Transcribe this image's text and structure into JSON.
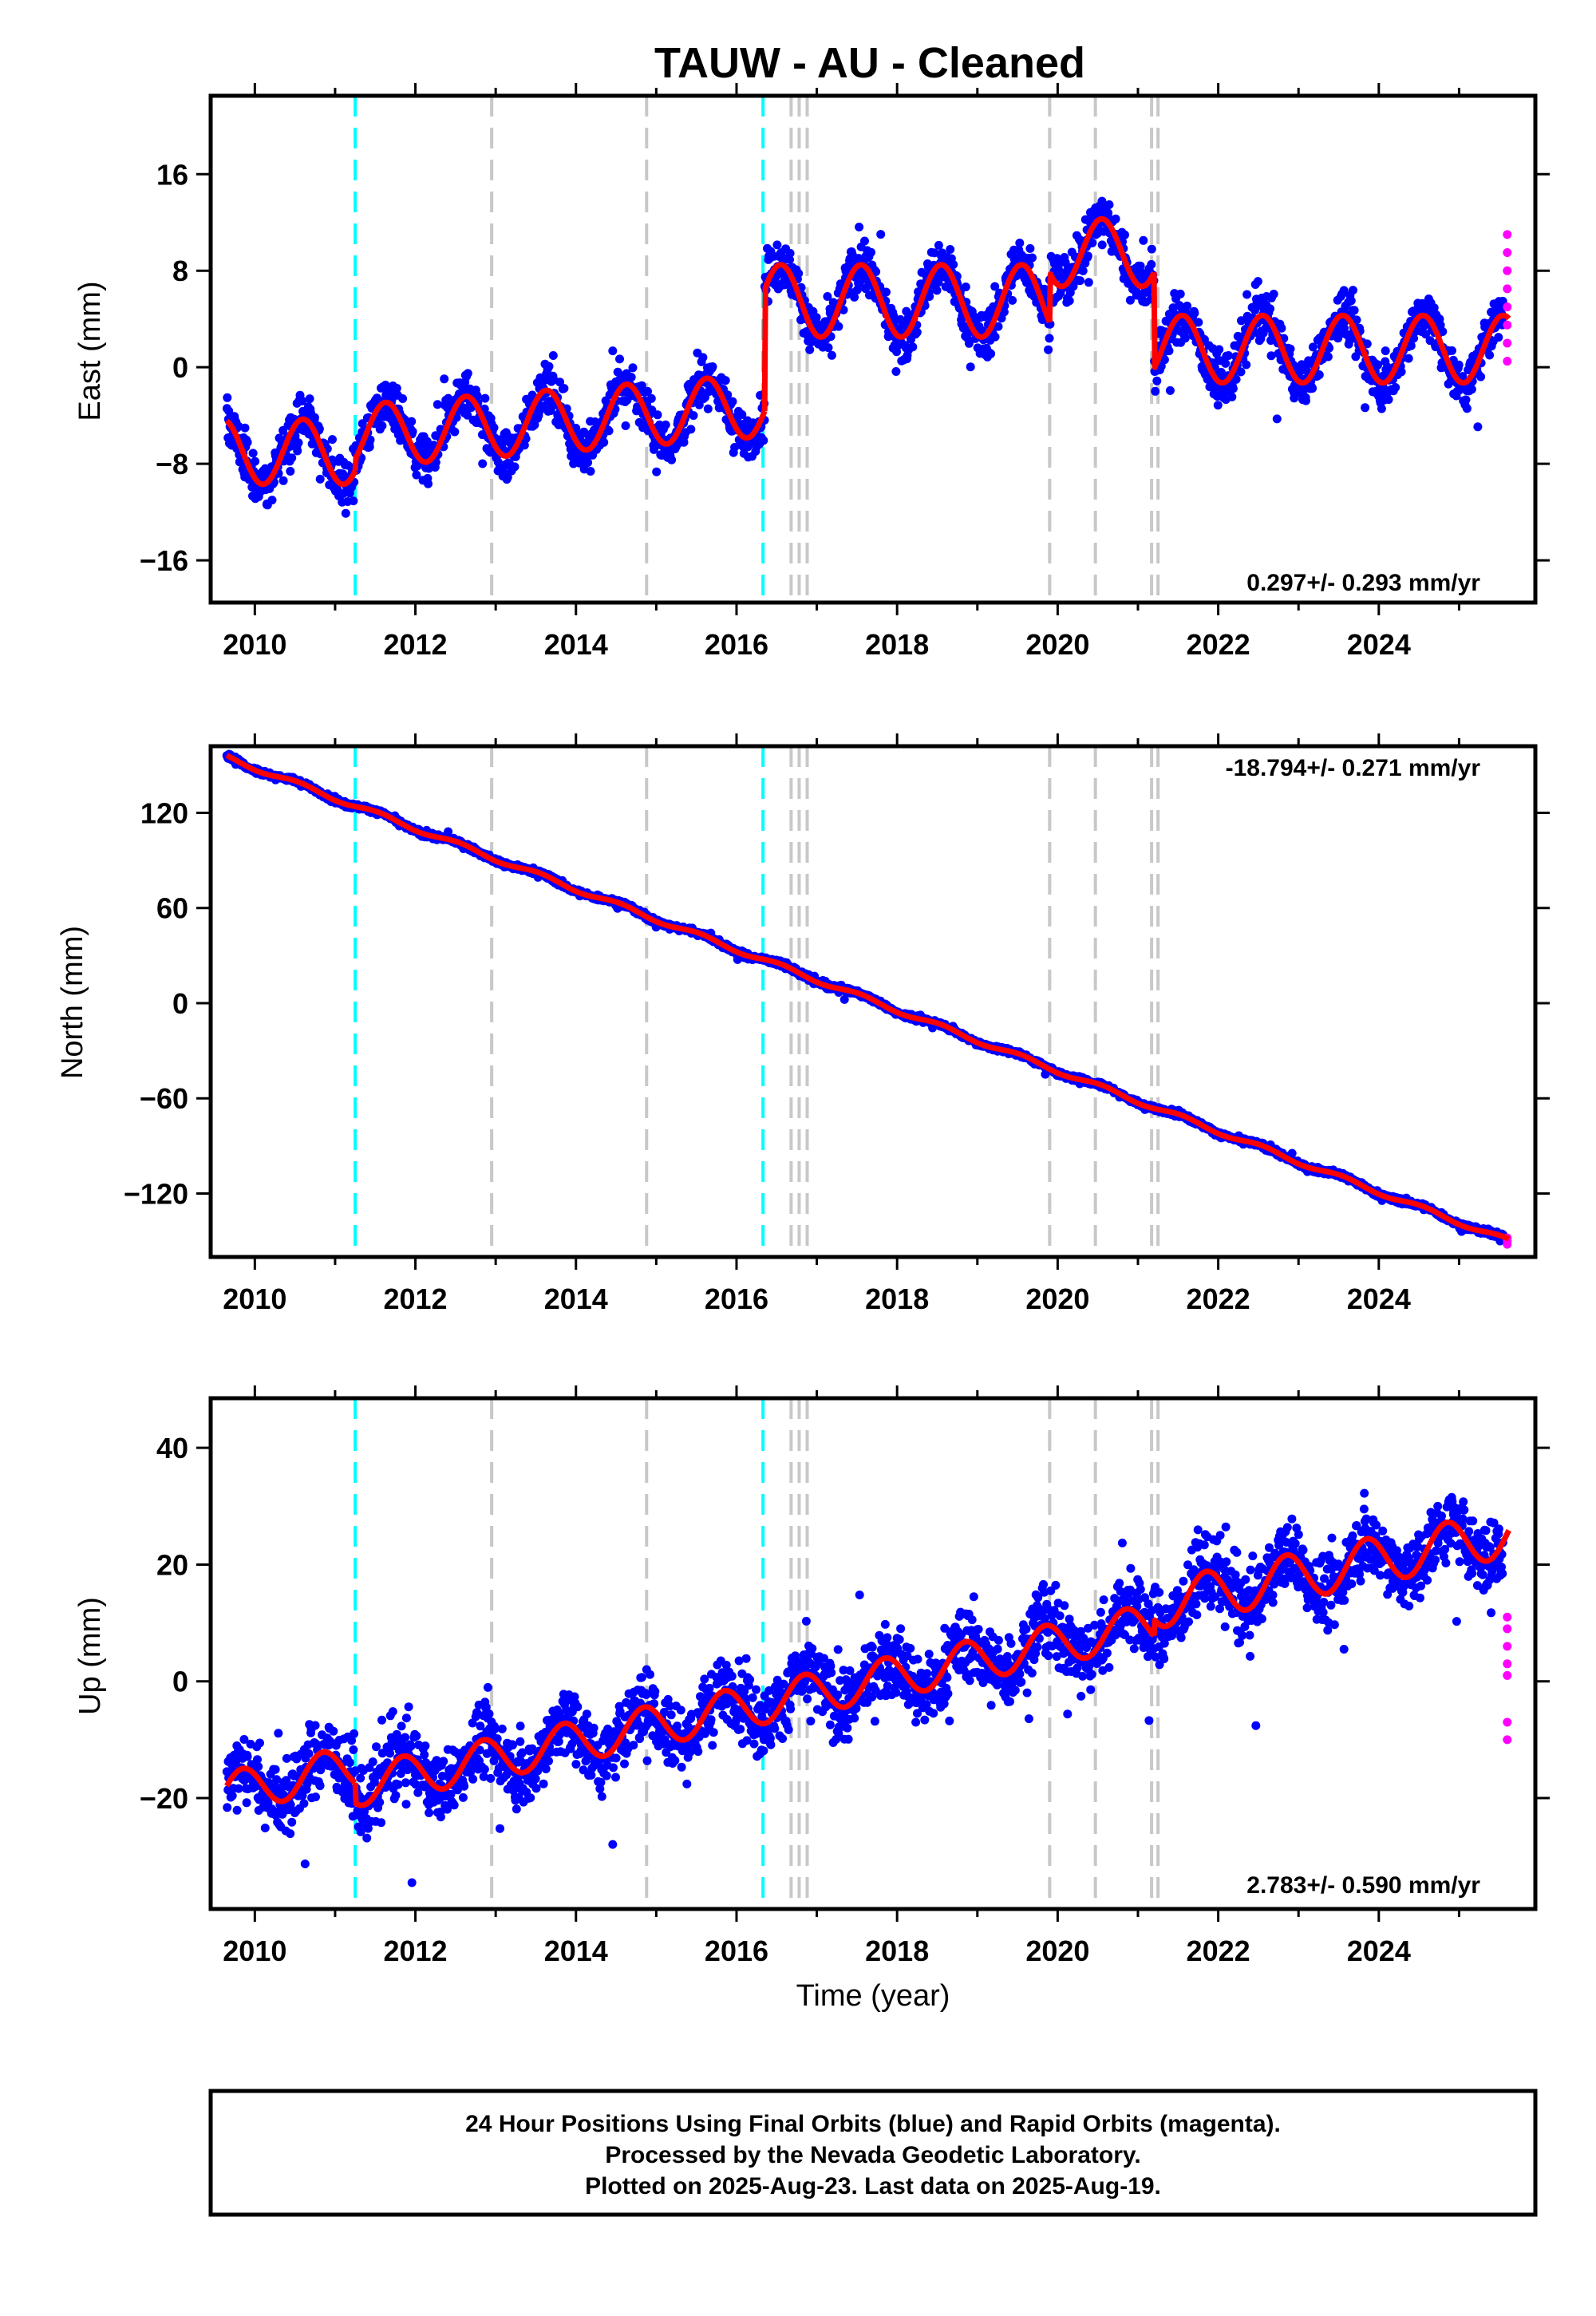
{
  "title": "TAUW  - AU - Cleaned",
  "xlabel": "Time (year)",
  "footer": {
    "lines": [
      "24 Hour Positions Using Final Orbits (blue) and Rapid Orbits (magenta).",
      "Processed by the Nevada Geodetic Laboratory.",
      "Plotted on 2025-Aug-23. Last data on 2025-Aug-19."
    ]
  },
  "colors": {
    "final_orbits": "#0000ff",
    "rapid_orbits": "#ff00ff",
    "model_fit": "#ff0000",
    "antenna_change": "#00ffff",
    "equipment_change": "#c8c8c8"
  },
  "chart_data": [
    {
      "type": "scatter",
      "panel": "east",
      "ylabel": "East (mm)",
      "rate_label": "0.297+/- 0.293 mm/yr",
      "rate_position": "bottom-right",
      "xlim": [
        2009.45,
        2025.95
      ],
      "ylim": [
        -19.5,
        22.5
      ],
      "xticks": [
        2010,
        2012,
        2014,
        2016,
        2018,
        2020,
        2022,
        2024
      ],
      "yticks": [
        -16,
        -8,
        0,
        8,
        16
      ],
      "ytick_labels": [
        "−16",
        "−8",
        "0",
        "8",
        "16"
      ],
      "fit_segments": [
        {
          "start": 2009.65,
          "end": 2011.25,
          "offset": -7.0,
          "amp": 2.7,
          "phase": 0.35
        },
        {
          "start": 2011.25,
          "end": 2016.35,
          "offset": -5.7,
          "amp": 2.6,
          "phase": 0.38,
          "slope": 0.5
        },
        {
          "start": 2016.35,
          "end": 2019.9,
          "offset": 5.5,
          "amp": 3.0,
          "phase": 0.3
        },
        {
          "start": 2019.9,
          "end": 2021.2,
          "offset": 9.5,
          "amp": 2.8,
          "phase": 0.3
        },
        {
          "start": 2021.2,
          "end": 2025.62,
          "offset": 1.5,
          "amp": 2.8,
          "phase": 0.3
        }
      ],
      "scatter_spread": 1.8,
      "rapid_points": {
        "x": 2025.6,
        "y": [
          0.5,
          2.0,
          3.5,
          5.0,
          6.5,
          8.0,
          9.5,
          11.0
        ]
      },
      "antenna_changes": [
        2011.25,
        2016.33
      ],
      "equipment_changes": [
        2012.95,
        2014.88,
        2016.68,
        2016.78,
        2016.88,
        2019.9,
        2020.47,
        2021.17,
        2021.25
      ]
    },
    {
      "type": "scatter",
      "panel": "north",
      "ylabel": "North (mm)",
      "rate_label": "-18.794+/- 0.271 mm/yr",
      "rate_position": "top-right",
      "xlim": [
        2009.45,
        2025.95
      ],
      "ylim": [
        -160,
        162
      ],
      "xticks": [
        2010,
        2012,
        2014,
        2016,
        2018,
        2020,
        2022,
        2024
      ],
      "yticks": [
        -120,
        -60,
        0,
        60,
        120
      ],
      "ytick_labels": [
        "−120",
        "−60",
        "0",
        "60",
        "120"
      ],
      "fit_line": {
        "x": [
          2009.65,
          2025.62
        ],
        "y": [
          155,
          -150
        ]
      },
      "fit_amp": 1.5,
      "scatter_spread": 1.6,
      "rapid_points": {
        "x": 2025.6,
        "y": [
          -152,
          -150,
          -148
        ]
      },
      "antenna_changes": [
        2011.25,
        2016.33
      ],
      "equipment_changes": [
        2012.95,
        2014.88,
        2016.68,
        2016.78,
        2016.88,
        2019.9,
        2020.47,
        2021.17,
        2021.25
      ]
    },
    {
      "type": "scatter",
      "panel": "up",
      "ylabel": "Up (mm)",
      "rate_label": "2.783+/- 0.590 mm/yr",
      "rate_position": "bottom-right",
      "xlim": [
        2009.45,
        2025.95
      ],
      "ylim": [
        -39,
        48.5
      ],
      "xticks": [
        2010,
        2012,
        2014,
        2016,
        2018,
        2020,
        2022,
        2024
      ],
      "yticks": [
        -20,
        0,
        20,
        40
      ],
      "ytick_labels": [
        "−20",
        "0",
        "20",
        "40"
      ],
      "fit_segments": [
        {
          "start": 2009.65,
          "end": 2011.25,
          "offset": -19,
          "amp": 3.5,
          "phase": 0.6,
          "slope": 2.8
        },
        {
          "start": 2011.25,
          "end": 2021.2,
          "offset": -18,
          "amp": 3.5,
          "phase": 0.6,
          "slope": 2.8
        },
        {
          "start": 2021.2,
          "end": 2025.62,
          "offset": 13,
          "amp": 4.0,
          "phase": 0.6,
          "slope": 2.8
        }
      ],
      "scatter_spread": 5.5,
      "rapid_points": {
        "x": 2025.6,
        "y": [
          -10,
          -7,
          1,
          3,
          6,
          9,
          11
        ]
      },
      "antenna_changes": [
        2011.25,
        2016.33
      ],
      "equipment_changes": [
        2012.95,
        2014.88,
        2016.68,
        2016.78,
        2016.88,
        2019.9,
        2020.47,
        2021.17,
        2021.25
      ]
    }
  ]
}
